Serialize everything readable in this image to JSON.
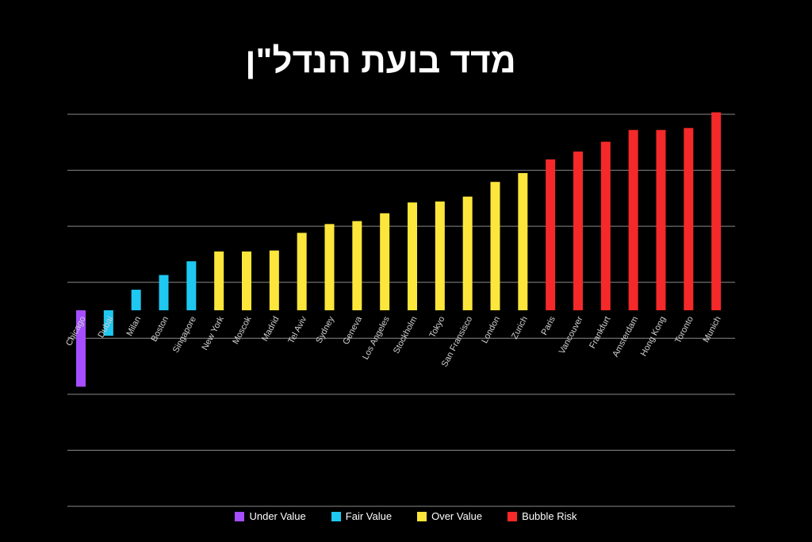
{
  "chart_data": {
    "type": "bar",
    "title": "מדד בועת הנדל\"ן",
    "xlabel": "",
    "ylabel": "",
    "ylim": [
      -2,
      2
    ],
    "grid": true,
    "legend_position": "bottom",
    "categories": [
      "Chicago",
      "Dubai",
      "Milan",
      "Boston",
      "Singapore",
      "New York",
      "Moscok",
      "Madrid",
      "Tel Aviv",
      "Sydney",
      "Geneva",
      "Los Angeles",
      "Stockholm",
      "Tokyo",
      "San Fransisco",
      "London",
      "Zurich",
      "Paris",
      "Vancouver",
      "Frankfurt",
      "Amsterdam",
      "Hong Kong",
      "Toronto",
      "Munich"
    ],
    "values": [
      -0.78,
      -0.26,
      0.21,
      0.36,
      0.5,
      0.6,
      0.6,
      0.61,
      0.79,
      0.88,
      0.91,
      0.99,
      1.1,
      1.11,
      1.16,
      1.31,
      1.4,
      1.54,
      1.62,
      1.72,
      1.84,
      1.84,
      1.86,
      2.02
    ],
    "classes": [
      "Under Value",
      "Fair Value",
      "Fair Value",
      "Fair Value",
      "Fair Value",
      "Over Value",
      "Over Value",
      "Over Value",
      "Over Value",
      "Over Value",
      "Over Value",
      "Over Value",
      "Over Value",
      "Over Value",
      "Over Value",
      "Over Value",
      "Over Value",
      "Bubble Risk",
      "Bubble Risk",
      "Bubble Risk",
      "Bubble Risk",
      "Bubble Risk",
      "Bubble Risk",
      "Bubble Risk"
    ],
    "legend": [
      {
        "name": "Under Value",
        "color": "#a64dff"
      },
      {
        "name": "Fair Value",
        "color": "#1ec8f0"
      },
      {
        "name": "Over Value",
        "color": "#fde63b"
      },
      {
        "name": "Bubble Risk",
        "color": "#f52929"
      }
    ]
  },
  "colors": {
    "background": "#000000",
    "grid": "#8a8a8a"
  }
}
